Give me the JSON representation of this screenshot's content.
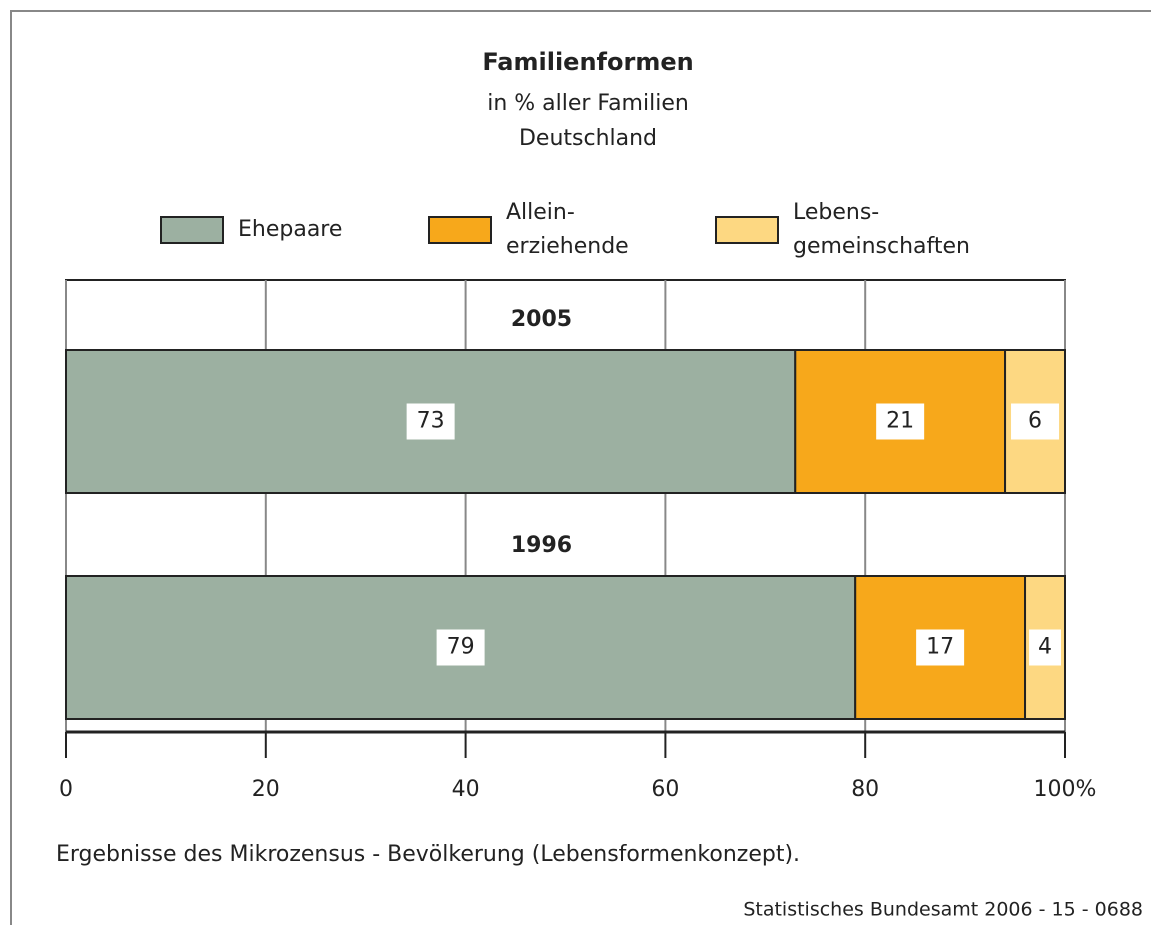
{
  "chart_data": {
    "type": "stacked-bar-horizontal",
    "title": "Familienformen",
    "subtitle": [
      "in % aller Familien",
      "Deutschland"
    ],
    "categories": [
      "2005",
      "1996"
    ],
    "series": [
      {
        "name": "Ehepaare",
        "color": "#9cb0a1",
        "values": [
          73,
          79
        ]
      },
      {
        "name": "Allein-\nerziehende",
        "color": "#f7a81b",
        "values": [
          21,
          17
        ]
      },
      {
        "name": "Lebens-\ngemeinschaften",
        "color": "#fdd882",
        "values": [
          6,
          4
        ]
      }
    ],
    "xlim": [
      0,
      100
    ],
    "xticks": [
      0,
      20,
      40,
      60,
      80,
      {
        "value": 100,
        "label": "100%"
      }
    ],
    "grid": true,
    "footnote": "Ergebnisse des Mikrozensus - Bevölkerung (Lebensformenkonzept).",
    "source": "Statistisches Bundesamt 2006 - 15 - 0688"
  }
}
